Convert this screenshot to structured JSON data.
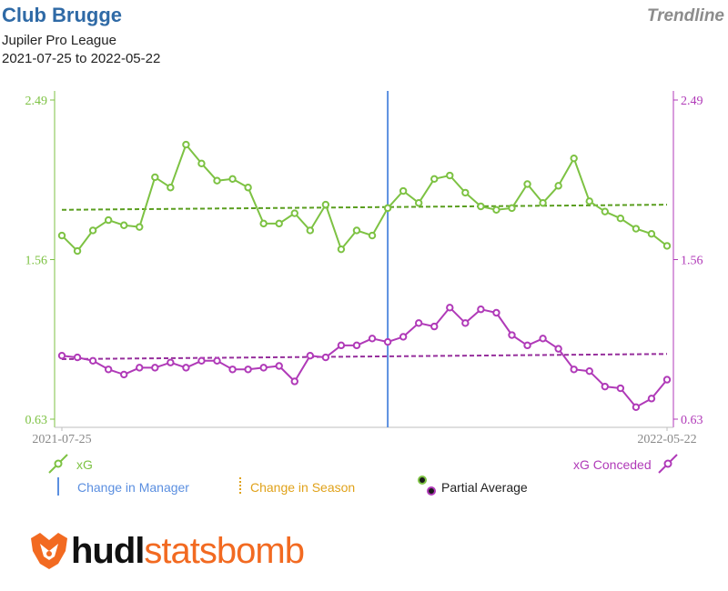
{
  "header": {
    "title": "Club Brugge",
    "badge": "Trendline",
    "league": "Jupiler Pro League",
    "date_range": "2021-07-25 to 2022-05-22"
  },
  "colors": {
    "xg": "#7dc243",
    "xg_trend": "#5a9e1f",
    "xgc": "#b03ab8",
    "xgc_trend": "#962f9c",
    "manager": "#5b8fe0",
    "season": "#e0a21a",
    "title": "#2f6aa6",
    "brand": "#f26a21"
  },
  "legend": {
    "xg": "xG",
    "xg_conceded": "xG Conceded",
    "change_manager": "Change in Manager",
    "change_season": "Change in Season",
    "partial_average": "Partial Average"
  },
  "brand": {
    "logo_icon": "hudl-fox-icon",
    "part1": "hudl",
    "part2": "statsbomb"
  },
  "chart_data": {
    "type": "line",
    "x_labels": [
      "2021-07-25",
      "2022-05-22"
    ],
    "y_left_ticks": [
      "2.49",
      "1.56",
      "0.63"
    ],
    "y_right_ticks": [
      "2.49",
      "1.56",
      "0.63"
    ],
    "ylim": [
      0.63,
      2.49
    ],
    "grid": false,
    "manager_change_match_index": 21,
    "series": [
      {
        "name": "xG",
        "axis": "left",
        "values": [
          1.7,
          1.61,
          1.73,
          1.79,
          1.76,
          1.75,
          2.04,
          1.98,
          2.23,
          2.12,
          2.02,
          2.03,
          1.98,
          1.77,
          1.77,
          1.83,
          1.73,
          1.88,
          1.62,
          1.73,
          1.7,
          1.86,
          1.96,
          1.89,
          2.03,
          2.05,
          1.95,
          1.87,
          1.85,
          1.86,
          2.0,
          1.89,
          1.99,
          2.15,
          1.9,
          1.84,
          1.8,
          1.74,
          1.71,
          1.64
        ],
        "trend": [
          1.85,
          1.88
        ]
      },
      {
        "name": "xG Conceded",
        "axis": "right",
        "values": [
          1.0,
          0.99,
          0.97,
          0.92,
          0.89,
          0.93,
          0.93,
          0.96,
          0.93,
          0.97,
          0.97,
          0.92,
          0.92,
          0.93,
          0.94,
          0.85,
          1.0,
          0.99,
          1.06,
          1.06,
          1.1,
          1.08,
          1.11,
          1.19,
          1.17,
          1.28,
          1.19,
          1.27,
          1.25,
          1.12,
          1.06,
          1.1,
          1.04,
          0.92,
          0.91,
          0.82,
          0.81,
          0.7,
          0.75,
          0.86
        ],
        "trend": [
          0.98,
          1.01
        ]
      }
    ]
  }
}
